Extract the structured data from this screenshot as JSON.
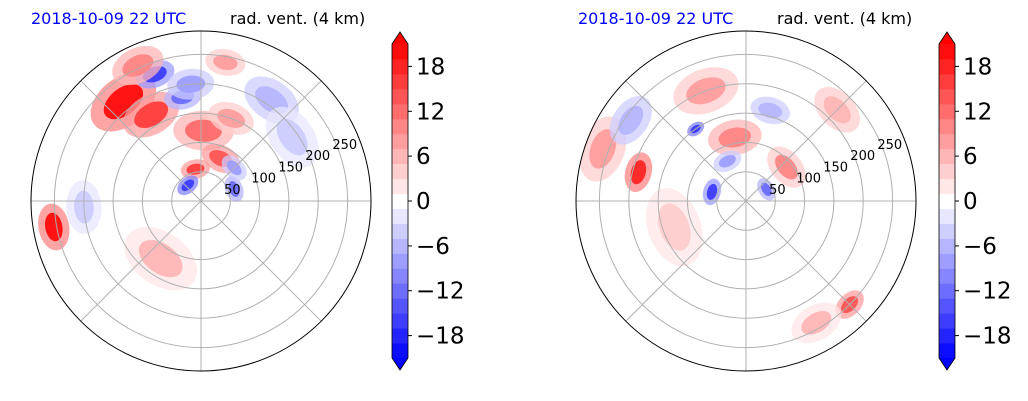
{
  "chart_data": [
    {
      "type": "heatmap",
      "projection": "polar",
      "title_left": "2018-10-09 22 UTC",
      "title_right": "rad. vent. (4 km)",
      "radial_ticks": [
        "50",
        "100",
        "150",
        "200",
        "250"
      ],
      "radial_tick_values": [
        50,
        100,
        150,
        200,
        250
      ],
      "rmax": 290,
      "spoke_angles_deg": [
        0,
        45,
        90,
        135,
        180,
        225,
        270,
        315
      ],
      "colorbar": {
        "ticks": [
          "18",
          "12",
          "6",
          "0",
          "−6",
          "−12",
          "−18"
        ],
        "tick_values": [
          18,
          12,
          6,
          0,
          -6,
          -12,
          -18
        ],
        "range": [
          -21,
          21
        ],
        "extend": "both",
        "levels": 21,
        "cmap": "bwr"
      },
      "features": [
        {
          "r": 215,
          "theta": 128,
          "v": 19,
          "w": 55
        },
        {
          "r": 170,
          "theta": 120,
          "v": 16,
          "w": 45
        },
        {
          "r": 230,
          "theta": 110,
          "v": -16,
          "w": 30
        },
        {
          "r": 180,
          "theta": 100,
          "v": -12,
          "w": 28
        },
        {
          "r": 255,
          "theta": 115,
          "v": 10,
          "w": 40
        },
        {
          "r": 200,
          "theta": 95,
          "v": -8,
          "w": 35
        },
        {
          "r": 120,
          "theta": 88,
          "v": 11,
          "w": 45
        },
        {
          "r": 80,
          "theta": 65,
          "v": 14,
          "w": 30
        },
        {
          "r": 55,
          "theta": 100,
          "v": 15,
          "w": 22
        },
        {
          "r": 35,
          "theta": 130,
          "v": -17,
          "w": 18
        },
        {
          "r": 60,
          "theta": 20,
          "v": -12,
          "w": 20
        },
        {
          "r": 80,
          "theta": 45,
          "v": -9,
          "w": 22
        },
        {
          "r": 150,
          "theta": 70,
          "v": 8,
          "w": 35
        },
        {
          "r": 255,
          "theta": 190,
          "v": 19,
          "w": 35
        },
        {
          "r": 200,
          "theta": 183,
          "v": -5,
          "w": 40
        },
        {
          "r": 120,
          "theta": 235,
          "v": 5,
          "w": 60
        },
        {
          "r": 210,
          "theta": 55,
          "v": -6,
          "w": 45
        },
        {
          "r": 240,
          "theta": 80,
          "v": 8,
          "w": 30
        },
        {
          "r": 190,
          "theta": 35,
          "v": -4,
          "w": 50
        }
      ]
    },
    {
      "type": "heatmap",
      "projection": "polar",
      "title_left": "2018-10-09 22 UTC",
      "title_right": "rad. vent. (4 km)",
      "radial_ticks": [
        "50",
        "100",
        "150",
        "200",
        "250"
      ],
      "radial_tick_values": [
        50,
        100,
        150,
        200,
        250
      ],
      "rmax": 290,
      "spoke_angles_deg": [
        0,
        45,
        90,
        135,
        180,
        225,
        270,
        315
      ],
      "colorbar": {
        "ticks": [
          "18",
          "12",
          "6",
          "0",
          "−6",
          "−12",
          "−18"
        ],
        "tick_values": [
          18,
          12,
          6,
          0,
          -6,
          -12,
          -18
        ],
        "range": [
          -21,
          21
        ],
        "extend": "both",
        "levels": 21,
        "cmap": "bwr"
      },
      "features": [
        {
          "r": 190,
          "theta": 165,
          "v": 18,
          "w": 30
        },
        {
          "r": 150,
          "theta": 125,
          "v": -17,
          "w": 14
        },
        {
          "r": 110,
          "theta": 100,
          "v": 10,
          "w": 40
        },
        {
          "r": 60,
          "theta": 165,
          "v": -16,
          "w": 20
        },
        {
          "r": 40,
          "theta": 30,
          "v": -12,
          "w": 18
        },
        {
          "r": 90,
          "theta": 40,
          "v": 9,
          "w": 35
        },
        {
          "r": 260,
          "theta": 160,
          "v": 8,
          "w": 50
        },
        {
          "r": 240,
          "theta": 145,
          "v": -6,
          "w": 40
        },
        {
          "r": 200,
          "theta": 110,
          "v": 7,
          "w": 50
        },
        {
          "r": 220,
          "theta": 45,
          "v": 6,
          "w": 40
        },
        {
          "r": 250,
          "theta": 315,
          "v": 14,
          "w": 25
        },
        {
          "r": 240,
          "theta": 300,
          "v": 5,
          "w": 40
        },
        {
          "r": 130,
          "theta": 200,
          "v": 4,
          "w": 60
        },
        {
          "r": 75,
          "theta": 115,
          "v": -8,
          "w": 22
        },
        {
          "r": 160,
          "theta": 75,
          "v": -7,
          "w": 30
        }
      ]
    }
  ]
}
